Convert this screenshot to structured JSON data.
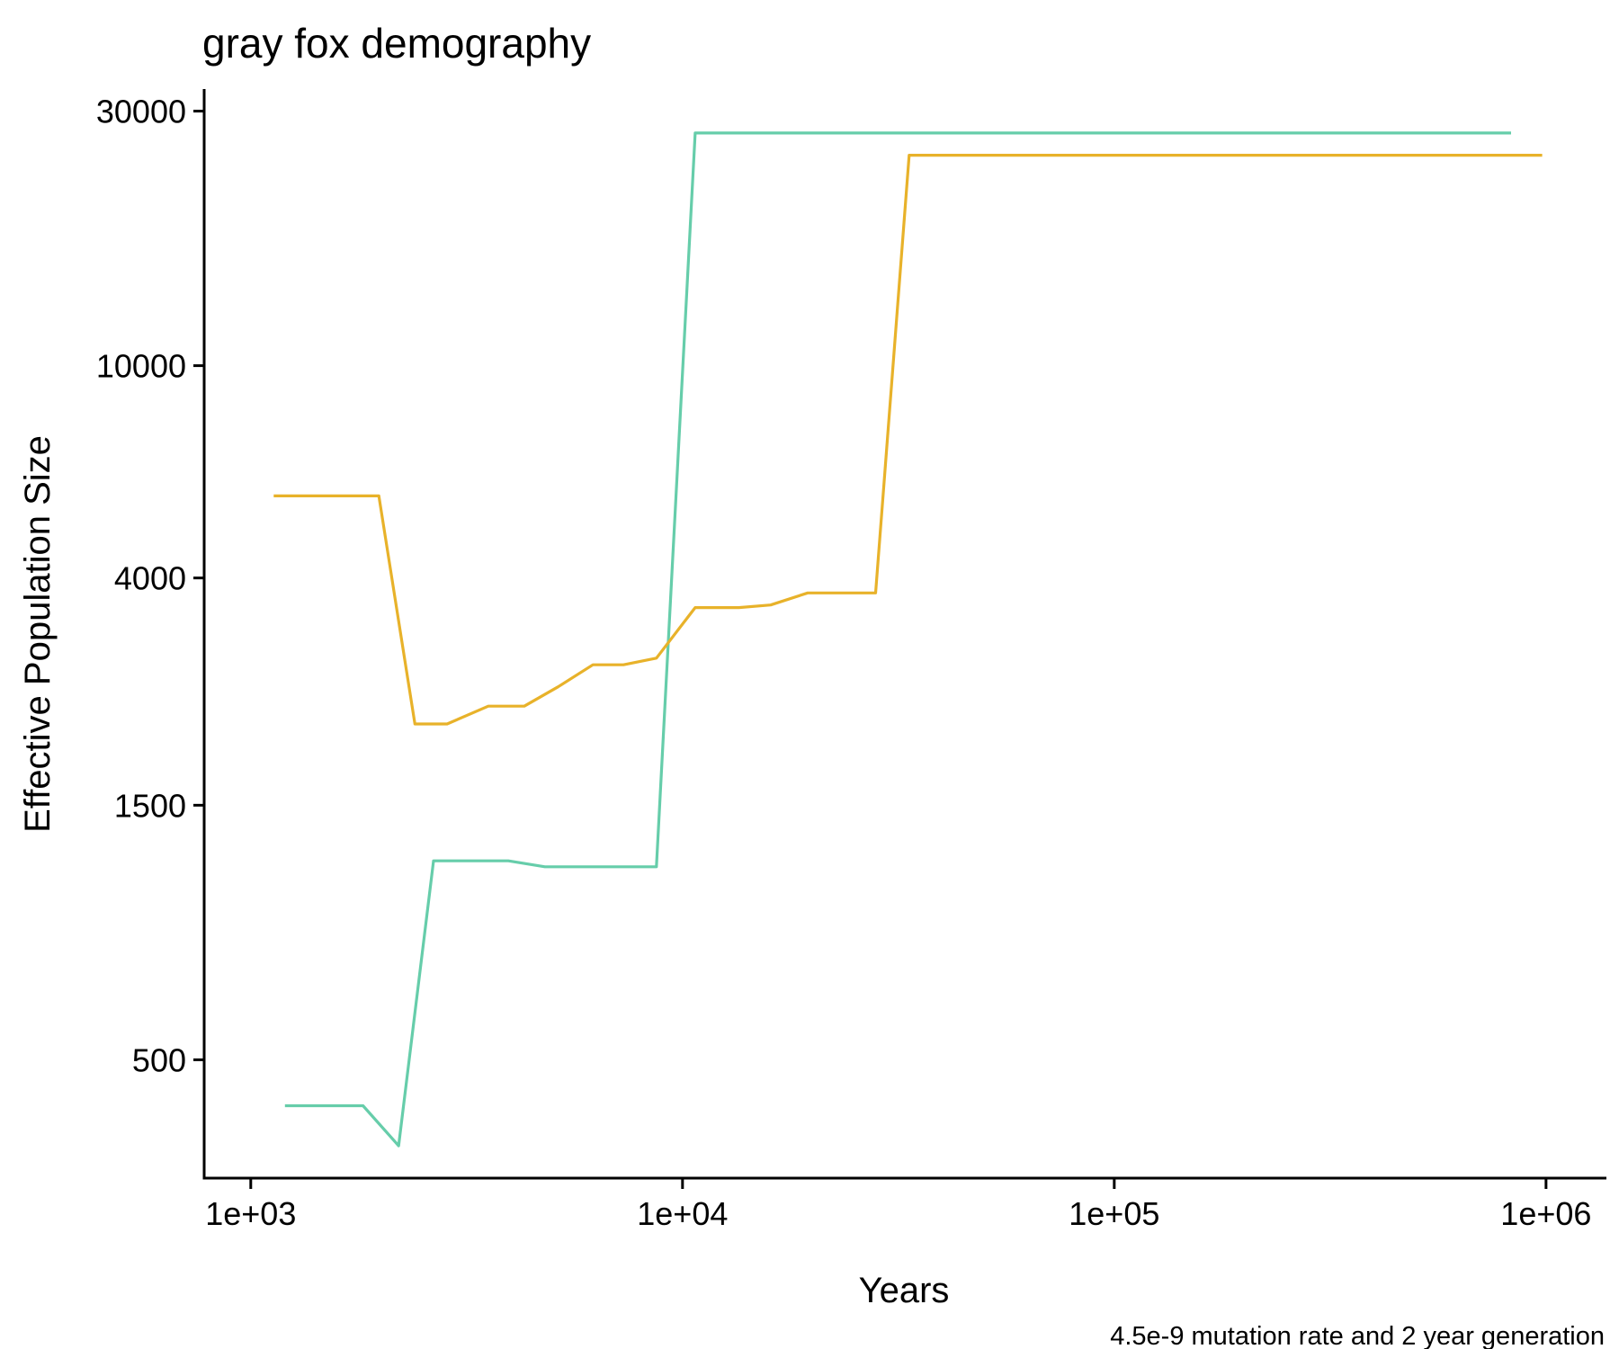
{
  "chart_data": {
    "type": "line",
    "title": "gray fox demography",
    "xlabel": "Years",
    "ylabel": "Effective Population Size",
    "caption": "4.5e-9 mutation rate and 2 year generation",
    "x_scale": "log10",
    "y_scale": "log10",
    "xlim": [
      780,
      1380000
    ],
    "ylim": [
      300,
      33000
    ],
    "x_ticks": [
      {
        "value": 1000,
        "label": "1e+03"
      },
      {
        "value": 10000,
        "label": "1e+04"
      },
      {
        "value": 100000,
        "label": "1e+05"
      },
      {
        "value": 1000000,
        "label": "1e+06"
      }
    ],
    "y_ticks": [
      {
        "value": 500,
        "label": "500"
      },
      {
        "value": 1500,
        "label": "1500"
      },
      {
        "value": 4000,
        "label": "4000"
      },
      {
        "value": 10000,
        "label": "10000"
      },
      {
        "value": 30000,
        "label": "30000"
      }
    ],
    "grid": false,
    "legend": "none",
    "series": [
      {
        "color": "#66CDAA",
        "points": [
          [
            1200,
            410
          ],
          [
            1820,
            410
          ],
          [
            2200,
            345
          ],
          [
            2650,
            1180
          ],
          [
            3950,
            1180
          ],
          [
            4800,
            1150
          ],
          [
            8700,
            1150
          ],
          [
            10700,
            27300
          ],
          [
            830000,
            27300
          ]
        ]
      },
      {
        "color": "#E8B22A",
        "points": [
          [
            1130,
            5700
          ],
          [
            1980,
            5700
          ],
          [
            2400,
            2130
          ],
          [
            2850,
            2130
          ],
          [
            3550,
            2300
          ],
          [
            4300,
            2300
          ],
          [
            5150,
            2500
          ],
          [
            6200,
            2750
          ],
          [
            7300,
            2750
          ],
          [
            8700,
            2830
          ],
          [
            10700,
            3520
          ],
          [
            13500,
            3520
          ],
          [
            16000,
            3560
          ],
          [
            19500,
            3750
          ],
          [
            28000,
            3750
          ],
          [
            33500,
            24800
          ],
          [
            980000,
            24800
          ]
        ]
      }
    ]
  }
}
